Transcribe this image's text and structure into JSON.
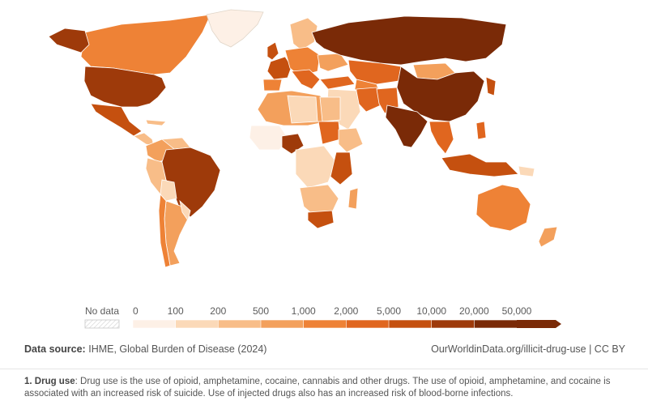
{
  "legend": {
    "no_data_label": "No data",
    "ticks": [
      "0",
      "100",
      "200",
      "500",
      "1,000",
      "2,000",
      "5,000",
      "10,000",
      "20,000",
      "50,000"
    ],
    "colors": [
      "#fdf0e6",
      "#fbd9b8",
      "#f8bd88",
      "#f3a05c",
      "#ee8236",
      "#e0661f",
      "#c5500f",
      "#9e3a0a",
      "#7a2a07"
    ]
  },
  "source": {
    "label": "Data source:",
    "text": "IHME, Global Burden of Disease (2024)",
    "link": "OurWorldinData.org/illicit-drug-use | CC BY"
  },
  "note": {
    "label": "1. Drug use",
    "text": ": Drug use is the use of opioid, amphetamine, cocaine, cannabis and other drugs. The use of opioid, amphetamine, and cocaine is associated with an increased risk of suicide. Use of injected drugs also has an increased risk of blood-borne infections."
  }
}
